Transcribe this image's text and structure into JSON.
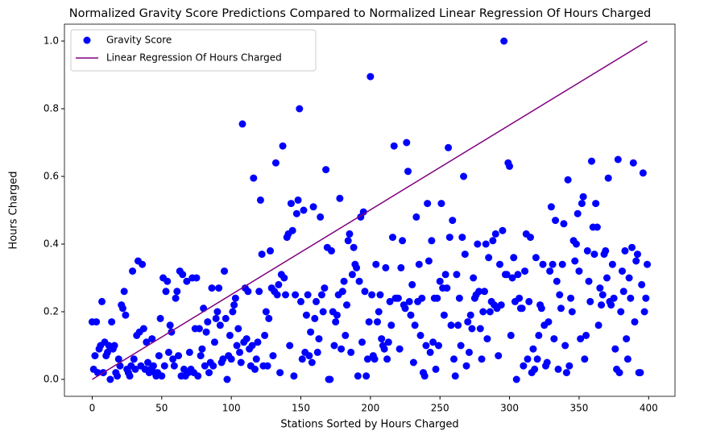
{
  "chart_data": {
    "type": "scatter",
    "title": "Normalized Gravity Score Predictions Compared to Normalized Linear Regression Of Hours Charged",
    "xlabel": "Stations Sorted by Hours Charged",
    "ylabel": "Hours Charged",
    "xlim": [
      -19.95,
      418.95
    ],
    "ylim": [
      -0.05,
      1.05
    ],
    "xticks": [
      0,
      50,
      100,
      150,
      200,
      250,
      300,
      350,
      400
    ],
    "yticks": [
      {
        "value": 0,
        "label": "0.0"
      },
      {
        "value": 0.2,
        "label": "0.2"
      },
      {
        "value": 0.4,
        "label": "0.4"
      },
      {
        "value": 0.6,
        "label": "0.6"
      },
      {
        "value": 0.8,
        "label": "0.8"
      },
      {
        "value": 1,
        "label": "1.0"
      }
    ],
    "legend": "upper left",
    "grid": false,
    "series": [
      {
        "name": "Gravity Score",
        "type": "scatter",
        "color": "#0000ff",
        "x": [
          0,
          1,
          2,
          3,
          4,
          5,
          6,
          7,
          8,
          9,
          10,
          11,
          12,
          13,
          14,
          15,
          16,
          17,
          18,
          19,
          20,
          21,
          22,
          23,
          24,
          25,
          26,
          27,
          28,
          29,
          30,
          31,
          32,
          33,
          34,
          35,
          36,
          37,
          38,
          39,
          40,
          41,
          42,
          43,
          44,
          45,
          46,
          47,
          48,
          49,
          50,
          51,
          52,
          53,
          54,
          55,
          56,
          57,
          58,
          59,
          60,
          61,
          62,
          63,
          64,
          65,
          66,
          67,
          68,
          69,
          70,
          71,
          72,
          73,
          74,
          75,
          76,
          77,
          78,
          79,
          80,
          81,
          82,
          83,
          84,
          85,
          86,
          87,
          88,
          89,
          90,
          91,
          92,
          93,
          94,
          95,
          96,
          97,
          98,
          99,
          100,
          101,
          102,
          103,
          104,
          105,
          106,
          107,
          108,
          109,
          110,
          111,
          112,
          113,
          114,
          115,
          116,
          117,
          118,
          119,
          120,
          121,
          122,
          123,
          124,
          125,
          126,
          127,
          128,
          129,
          130,
          131,
          132,
          133,
          134,
          135,
          136,
          137,
          138,
          139,
          140,
          141,
          142,
          143,
          144,
          145,
          146,
          147,
          148,
          149,
          150,
          151,
          152,
          153,
          154,
          155,
          156,
          157,
          158,
          159,
          160,
          161,
          162,
          163,
          164,
          165,
          166,
          167,
          168,
          169,
          170,
          171,
          172,
          173,
          174,
          175,
          176,
          177,
          178,
          179,
          180,
          181,
          182,
          183,
          184,
          185,
          186,
          187,
          188,
          189,
          190,
          191,
          192,
          193,
          194,
          195,
          196,
          197,
          198,
          199,
          200,
          201,
          202,
          203,
          204,
          205,
          206,
          207,
          208,
          209,
          210,
          211,
          212,
          213,
          214,
          215,
          216,
          217,
          218,
          219,
          220,
          221,
          222,
          223,
          224,
          225,
          226,
          227,
          228,
          229,
          230,
          231,
          232,
          233,
          234,
          235,
          236,
          237,
          238,
          239,
          240,
          241,
          242,
          243,
          244,
          245,
          246,
          247,
          248,
          249,
          250,
          251,
          252,
          253,
          254,
          255,
          256,
          257,
          258,
          259,
          260,
          261,
          262,
          263,
          264,
          265,
          266,
          267,
          268,
          269,
          270,
          271,
          272,
          273,
          274,
          275,
          276,
          277,
          278,
          279,
          280,
          281,
          282,
          283,
          284,
          285,
          286,
          287,
          288,
          289,
          290,
          291,
          292,
          293,
          294,
          295,
          296,
          297,
          298,
          299,
          300,
          301,
          302,
          303,
          304,
          305,
          306,
          307,
          308,
          309,
          310,
          311,
          312,
          313,
          314,
          315,
          316,
          317,
          318,
          319,
          320,
          321,
          322,
          323,
          324,
          325,
          326,
          327,
          328,
          329,
          330,
          331,
          332,
          333,
          334,
          335,
          336,
          337,
          338,
          339,
          340,
          341,
          342,
          343,
          344,
          345,
          346,
          347,
          348,
          349,
          350,
          351,
          352,
          353,
          354,
          355,
          356,
          357,
          358,
          359,
          360,
          361,
          362,
          363,
          364,
          365,
          366,
          367,
          368,
          369,
          370,
          371,
          372,
          373,
          374,
          375,
          376,
          377,
          378,
          379,
          380,
          381,
          382,
          383,
          384,
          385,
          386,
          387,
          388,
          389,
          390,
          391,
          392,
          393,
          394,
          395,
          396,
          397,
          398,
          399
        ],
        "values": [
          0.17,
          0.03,
          0.07,
          0.17,
          0.02,
          0.09,
          0.1,
          0.23,
          0.02,
          0.11,
          0.07,
          0.08,
          0.1,
          0,
          0.17,
          0.09,
          0.1,
          0.02,
          0.01,
          0.06,
          0.04,
          0.22,
          0.21,
          0.26,
          0.19,
          0.03,
          0.02,
          0.01,
          0.04,
          0.32,
          0.06,
          0.03,
          0.13,
          0.35,
          0.14,
          0.04,
          0.34,
          0.15,
          0.03,
          0.11,
          0.05,
          0.02,
          0.03,
          0.12,
          0.04,
          0.02,
          0.01,
          0.02,
          0.07,
          0.18,
          0.01,
          0.3,
          0.04,
          0.26,
          0.29,
          0.08,
          0.16,
          0.14,
          0.06,
          0.04,
          0.24,
          0.26,
          0.07,
          0.32,
          0.01,
          0.31,
          0.03,
          0.01,
          0.29,
          0.02,
          0.08,
          0.03,
          0.3,
          0.02,
          0.15,
          0.3,
          0.01,
          0.15,
          0.07,
          0.09,
          0.21,
          0.04,
          0.14,
          0.17,
          0.02,
          0.05,
          0.27,
          0.04,
          0.11,
          0.18,
          0.2,
          0.27,
          0.16,
          0.05,
          0.06,
          0.32,
          0.18,
          0.0,
          0.07,
          0.13,
          0.06,
          0.2,
          0.22,
          0.24,
          0.1,
          0.15,
          0.08,
          0.05,
          0.755,
          0.11,
          0.27,
          0.12,
          0.26,
          0.09,
          0.04,
          0.1,
          0.595,
          0.03,
          0.06,
          0.11,
          0.26,
          0.53,
          0.37,
          0.04,
          0.13,
          0.2,
          0.04,
          0.18,
          0.38,
          0.27,
          0.07,
          0.26,
          0.64,
          0.25,
          0.28,
          0.02,
          0.31,
          0.69,
          0.3,
          0.25,
          0.42,
          0.43,
          0.1,
          0.52,
          0.44,
          0.01,
          0.25,
          0.49,
          0.53,
          0.8,
          0.23,
          0.06,
          0.5,
          0.08,
          0.19,
          0.25,
          0.07,
          0.14,
          0.05,
          0.51,
          0.18,
          0.23,
          0.08,
          0.12,
          0.48,
          0.25,
          0.2,
          0.27,
          0.62,
          0.39,
          0.0,
          0.0,
          0.38,
          0.2,
          0.1,
          0.17,
          0.19,
          0.25,
          0.535,
          0.09,
          0.26,
          0.29,
          0.13,
          0.22,
          0.41,
          0.43,
          0.08,
          0.31,
          0.39,
          0.34,
          0.33,
          0.01,
          0.29,
          0.48,
          0.11,
          0.495,
          0.26,
          0.01,
          0.06,
          0.17,
          0.895,
          0.25,
          0.07,
          0.06,
          0.34,
          0.17,
          0.2,
          0.25,
          0.12,
          0.1,
          0.09,
          0.33,
          0.06,
          0.11,
          0.23,
          0.16,
          0.42,
          0.69,
          0.24,
          0.24,
          0.24,
          0.09,
          0.33,
          0.41,
          0.22,
          0.21,
          0.7,
          0.615,
          0.23,
          0.19,
          0.28,
          0.05,
          0.16,
          0.48,
          0.23,
          0.34,
          0.13,
          0.24,
          0.02,
          0.01,
          0.1,
          0.52,
          0.35,
          0.08,
          0.41,
          0.11,
          0.24,
          0.03,
          0.24,
          0.1,
          0.29,
          0.52,
          0.27,
          0.19,
          0.31,
          0.27,
          0.685,
          0.42,
          0.16,
          0.47,
          0.06,
          0.01,
          0.31,
          0.16,
          0.24,
          0.1,
          0.42,
          0.6,
          0.37,
          0.04,
          0.17,
          0.08,
          0.19,
          0.15,
          0.3,
          0.24,
          0.25,
          0.4,
          0.26,
          0.15,
          0.06,
          0.2,
          0.26,
          0.4,
          0.12,
          0.36,
          0.2,
          0.23,
          0.41,
          0.22,
          0.43,
          0.21,
          0.07,
          0.34,
          0.22,
          0.44,
          1.0,
          0.31,
          0.31,
          0.64,
          0.63,
          0.13,
          0.3,
          0.36,
          0.23,
          0.0,
          0.31,
          0.24,
          0.21,
          0.21,
          0.04,
          0.32,
          0.43,
          0.06,
          0.23,
          0.42,
          0.02,
          0.09,
          0.03,
          0.36,
          0.06,
          0.13,
          0.22,
          0.21,
          0.34,
          0.16,
          0.04,
          0.05,
          0.17,
          0.32,
          0.51,
          0.34,
          0.12,
          0.47,
          0.29,
          0.03,
          0.25,
          0.21,
          0.34,
          0.46,
          0.1,
          0.02,
          0.59,
          0.04,
          0.24,
          0.2,
          0.41,
          0.35,
          0.4,
          0.49,
          0.32,
          0.12,
          0.52,
          0.54,
          0.06,
          0.13,
          0.38,
          0.29,
          0.23,
          0.645,
          0.45,
          0.37,
          0.52,
          0.45,
          0.16,
          0.27,
          0.22,
          0.25,
          0.37,
          0.38,
          0.3,
          0.595,
          0.23,
          0.22,
          0.34,
          0.24,
          0.09,
          0.03,
          0.65,
          0.02,
          0.2,
          0.32,
          0.26,
          0.38,
          0.12,
          0.06,
          0.3,
          0.24,
          0.39,
          0.64,
          0.17,
          0.35,
          0.37,
          0.02,
          0.02,
          0.28,
          0.61,
          0.2,
          0.24,
          0.34
        ]
      },
      {
        "name": "Linear Regression Of Hours Charged",
        "type": "line",
        "color": "#800080",
        "x": [
          0,
          399
        ],
        "values": [
          0,
          1
        ]
      }
    ]
  }
}
